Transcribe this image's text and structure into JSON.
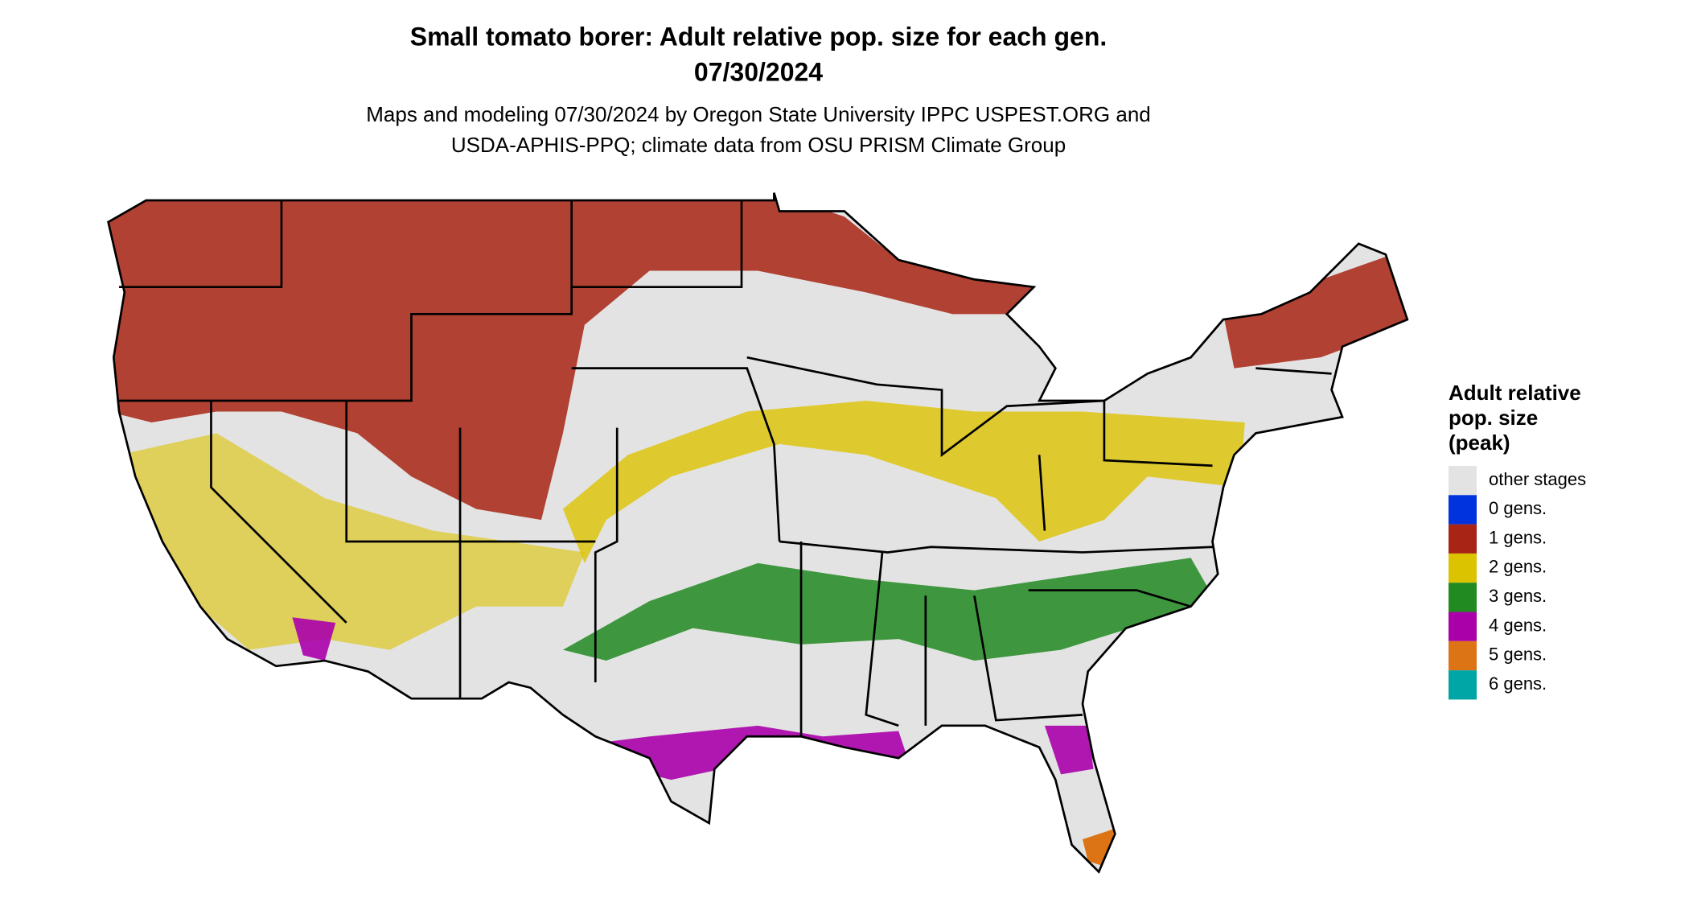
{
  "header": {
    "title": [
      "Small tomato borer: Adult relative pop. size for each gen.",
      "07/30/2024"
    ],
    "subtitle": [
      "Maps and modeling 07/30/2024 by Oregon State University IPPC USPEST.ORG and",
      "USDA-APHIS-PPQ; climate data from OSU PRISM Climate Group"
    ]
  },
  "legend": {
    "title": [
      "Adult relative",
      "pop. size",
      "(peak)"
    ],
    "items": [
      {
        "label": "other stages",
        "color": "#e3e3e3"
      },
      {
        "label": "0 gens.",
        "color": "#0033dd"
      },
      {
        "label": "1 gens.",
        "color": "#a82414"
      },
      {
        "label": "2 gens.",
        "color": "#dcc300"
      },
      {
        "label": "3 gens.",
        "color": "#218a21"
      },
      {
        "label": "4 gens.",
        "color": "#aa00aa"
      },
      {
        "label": "5 gens.",
        "color": "#dc7314"
      },
      {
        "label": "6 gens.",
        "color": "#00a6a6"
      }
    ]
  }
}
